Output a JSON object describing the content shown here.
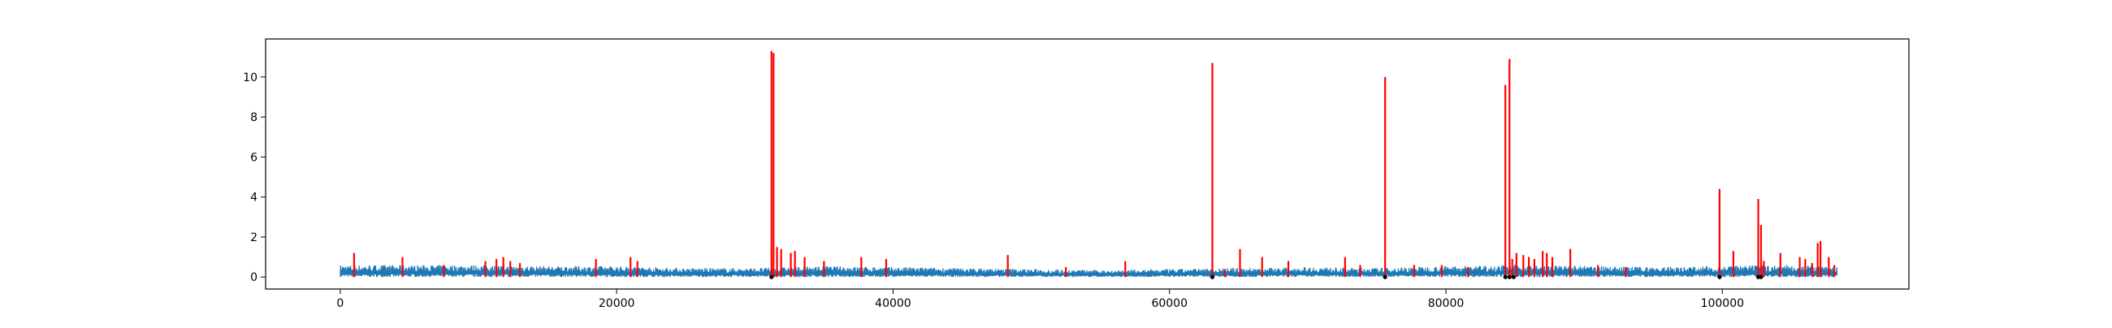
{
  "chart_data": {
    "type": "line",
    "title": "",
    "xlabel": "",
    "ylabel": "",
    "xlim": [
      -5400,
      113500
    ],
    "ylim": [
      -0.6,
      11.9
    ],
    "x_ticks": [
      0,
      20000,
      40000,
      60000,
      80000,
      100000
    ],
    "x_tick_labels": [
      "0",
      "20000",
      "40000",
      "60000",
      "80000",
      "100000"
    ],
    "y_ticks": [
      0,
      2,
      4,
      6,
      8,
      10
    ],
    "y_tick_labels": [
      "0",
      "2",
      "4",
      "6",
      "8",
      "10"
    ],
    "grid": false,
    "x_range": [
      0,
      108300
    ],
    "series": [
      {
        "style": "baseline signal",
        "color": "#1f77b4",
        "envelope_note_x": [
          0,
          5000,
          10000,
          15000,
          20000,
          25000,
          30000,
          35000,
          40000,
          45000,
          50000,
          55000,
          60000,
          65000,
          70000,
          75000,
          80000,
          85000,
          90000,
          95000,
          100000,
          105000,
          108300
        ],
        "envelope_note_y": [
          0.6,
          0.6,
          0.6,
          0.55,
          0.55,
          0.45,
          0.45,
          0.55,
          0.5,
          0.45,
          0.4,
          0.35,
          0.4,
          0.45,
          0.5,
          0.45,
          0.55,
          0.6,
          0.55,
          0.5,
          0.55,
          0.6,
          0.5
        ]
      },
      {
        "style": "anomaly spikes",
        "color": "#ff0000",
        "x": [
          1000,
          4500,
          7500,
          10500,
          11300,
          11800,
          12300,
          13000,
          18500,
          21000,
          21500,
          31200,
          31350,
          31600,
          31900,
          32600,
          32900,
          33600,
          35000,
          37700,
          39500,
          48300,
          52500,
          56800,
          63100,
          64000,
          65100,
          66700,
          68600,
          72700,
          73800,
          75600,
          77700,
          79700,
          81600,
          84300,
          84600,
          84800,
          85100,
          85600,
          86000,
          86400,
          87000,
          87300,
          87700,
          89000,
          91000,
          93000,
          99800,
          100800,
          102600,
          102800,
          103000,
          104200,
          105600,
          106000,
          106500,
          106900,
          107100,
          107700,
          108100
        ],
        "y": [
          1.2,
          1.0,
          0.6,
          0.8,
          0.9,
          1.0,
          0.8,
          0.7,
          0.9,
          1.0,
          0.8,
          11.3,
          11.2,
          1.5,
          1.4,
          1.2,
          1.3,
          1.0,
          0.8,
          1.0,
          0.9,
          1.1,
          0.5,
          0.8,
          10.7,
          0.4,
          1.4,
          1.0,
          0.8,
          1.0,
          0.6,
          10.0,
          0.6,
          0.6,
          0.5,
          9.6,
          10.9,
          0.9,
          1.2,
          1.1,
          1.0,
          0.9,
          1.3,
          1.2,
          1.0,
          1.4,
          0.6,
          0.5,
          4.4,
          1.3,
          3.9,
          2.6,
          0.8,
          1.2,
          1.0,
          0.9,
          0.7,
          1.7,
          1.8,
          1.0,
          0.6
        ]
      }
    ],
    "markers": {
      "color": "#000000",
      "note": "small dark markers at y=0 beneath major anomaly clusters",
      "x": [
        31200,
        63100,
        75600,
        84300,
        84600,
        84900,
        99800,
        102600,
        102800
      ]
    }
  }
}
